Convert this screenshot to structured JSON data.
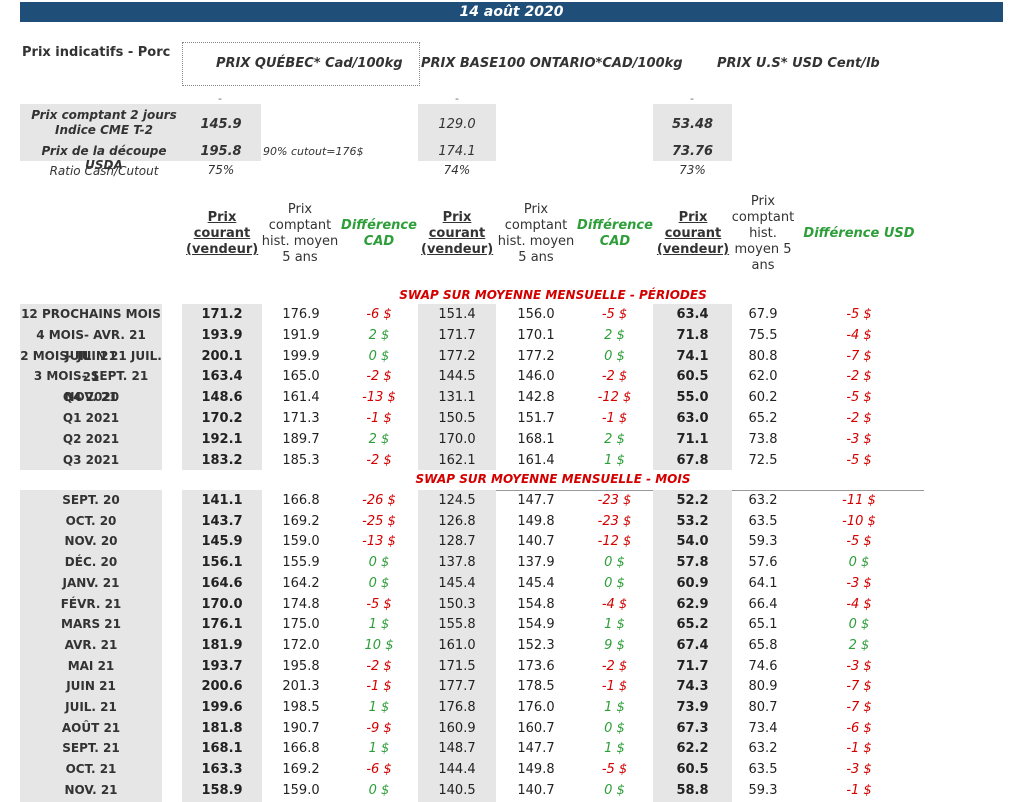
{
  "date": "14 août 2020",
  "header": {
    "title": "Prix indicatifs - Porc",
    "col_qc": "PRIX QUÉBEC* Cad/100kg",
    "col_on": "PRIX BASE100 ONTARIO*CAD/100kg",
    "col_us": "PRIX U.S* USD Cent/lb",
    "dash": "-"
  },
  "summary": {
    "cash_label": "Prix comptant 2 jours Indice CME T-2",
    "cutout_label": "Prix de la découpe USDA",
    "ratio_label": "Ratio Cash/Cutout",
    "cutout_note": "90% cutout=176$",
    "qc": {
      "cash": "145.9",
      "cutout": "195.8",
      "ratio": "75%"
    },
    "on": {
      "cash": "129.0",
      "cutout": "174.1",
      "ratio": "74%"
    },
    "us": {
      "cash": "53.48",
      "cutout": "73.76",
      "ratio": "73%"
    }
  },
  "subheaders": {
    "current": "Prix courant (vendeur)",
    "hist": "Prix comptant hist. moyen 5 ans",
    "hist_us": "Prix comptant hist. moyen 5 ans",
    "diff_cad": "Différence CAD",
    "diff_usd": "Différence USD"
  },
  "sections": {
    "periods": "SWAP SUR MOYENNE MENSUELLE - PÉRIODES",
    "months": "SWAP SUR MOYENNE MENSUELLE - MOIS"
  },
  "periods": [
    {
      "label": "12 PROCHAINS MOIS",
      "qc": "171.2",
      "qch": "176.9",
      "qcd": "-6 $",
      "on": "151.4",
      "onh": "156.0",
      "ond": "-5 $",
      "us": "63.4",
      "ush": "67.9",
      "usd": "-5 $"
    },
    {
      "label": "4 MOIS- AVR. 21 JUIL. 21",
      "qc": "193.9",
      "qch": "191.9",
      "qcd": "2 $",
      "on": "171.7",
      "onh": "170.1",
      "ond": "2 $",
      "us": "71.8",
      "ush": "75.5",
      "usd": "-4 $"
    },
    {
      "label": "2 MOIS- JUIN 21 JUIL. 21",
      "qc": "200.1",
      "qch": "199.9",
      "qcd": "0 $",
      "on": "177.2",
      "onh": "177.2",
      "ond": "0 $",
      "us": "74.1",
      "ush": "80.8",
      "usd": "-7 $"
    },
    {
      "label": "3 MOIS- SEPT. 21 NOV. 21",
      "qc": "163.4",
      "qch": "165.0",
      "qcd": "-2 $",
      "on": "144.5",
      "onh": "146.0",
      "ond": "-2 $",
      "us": "60.5",
      "ush": "62.0",
      "usd": "-2 $"
    },
    {
      "label": "Q4 2020",
      "qc": "148.6",
      "qch": "161.4",
      "qcd": "-13 $",
      "on": "131.1",
      "onh": "142.8",
      "ond": "-12 $",
      "us": "55.0",
      "ush": "60.2",
      "usd": "-5 $"
    },
    {
      "label": "Q1 2021",
      "qc": "170.2",
      "qch": "171.3",
      "qcd": "-1 $",
      "on": "150.5",
      "onh": "151.7",
      "ond": "-1 $",
      "us": "63.0",
      "ush": "65.2",
      "usd": "-2 $"
    },
    {
      "label": "Q2 2021",
      "qc": "192.1",
      "qch": "189.7",
      "qcd": "2 $",
      "on": "170.0",
      "onh": "168.1",
      "ond": "2 $",
      "us": "71.1",
      "ush": "73.8",
      "usd": "-3 $"
    },
    {
      "label": "Q3 2021",
      "qc": "183.2",
      "qch": "185.3",
      "qcd": "-2 $",
      "on": "162.1",
      "onh": "161.4",
      "ond": "1 $",
      "us": "67.8",
      "ush": "72.5",
      "usd": "-5 $"
    }
  ],
  "months": [
    {
      "label": "SEPT. 20",
      "qc": "141.1",
      "qch": "166.8",
      "qcd": "-26 $",
      "on": "124.5",
      "onh": "147.7",
      "ond": "-23 $",
      "us": "52.2",
      "ush": "63.2",
      "usd": "-11 $"
    },
    {
      "label": "OCT. 20",
      "qc": "143.7",
      "qch": "169.2",
      "qcd": "-25 $",
      "on": "126.8",
      "onh": "149.8",
      "ond": "-23 $",
      "us": "53.2",
      "ush": "63.5",
      "usd": "-10 $"
    },
    {
      "label": "NOV. 20",
      "qc": "145.9",
      "qch": "159.0",
      "qcd": "-13 $",
      "on": "128.7",
      "onh": "140.7",
      "ond": "-12 $",
      "us": "54.0",
      "ush": "59.3",
      "usd": "-5 $"
    },
    {
      "label": "DÉC. 20",
      "qc": "156.1",
      "qch": "155.9",
      "qcd": "0 $",
      "on": "137.8",
      "onh": "137.9",
      "ond": "0 $",
      "us": "57.8",
      "ush": "57.6",
      "usd": "0 $"
    },
    {
      "label": "JANV. 21",
      "qc": "164.6",
      "qch": "164.2",
      "qcd": "0 $",
      "on": "145.4",
      "onh": "145.4",
      "ond": "0 $",
      "us": "60.9",
      "ush": "64.1",
      "usd": "-3 $"
    },
    {
      "label": "FÉVR. 21",
      "qc": "170.0",
      "qch": "174.8",
      "qcd": "-5 $",
      "on": "150.3",
      "onh": "154.8",
      "ond": "-4 $",
      "us": "62.9",
      "ush": "66.4",
      "usd": "-4 $"
    },
    {
      "label": "MARS 21",
      "qc": "176.1",
      "qch": "175.0",
      "qcd": "1 $",
      "on": "155.8",
      "onh": "154.9",
      "ond": "1 $",
      "us": "65.2",
      "ush": "65.1",
      "usd": "0 $"
    },
    {
      "label": "AVR. 21",
      "qc": "181.9",
      "qch": "172.0",
      "qcd": "10 $",
      "on": "161.0",
      "onh": "152.3",
      "ond": "9 $",
      "us": "67.4",
      "ush": "65.8",
      "usd": "2 $"
    },
    {
      "label": "MAI 21",
      "qc": "193.7",
      "qch": "195.8",
      "qcd": "-2 $",
      "on": "171.5",
      "onh": "173.6",
      "ond": "-2 $",
      "us": "71.7",
      "ush": "74.6",
      "usd": "-3 $"
    },
    {
      "label": "JUIN 21",
      "qc": "200.6",
      "qch": "201.3",
      "qcd": "-1 $",
      "on": "177.7",
      "onh": "178.5",
      "ond": "-1 $",
      "us": "74.3",
      "ush": "80.9",
      "usd": "-7 $"
    },
    {
      "label": "JUIL. 21",
      "qc": "199.6",
      "qch": "198.5",
      "qcd": "1 $",
      "on": "176.8",
      "onh": "176.0",
      "ond": "1 $",
      "us": "73.9",
      "ush": "80.7",
      "usd": "-7 $"
    },
    {
      "label": "AOÛT 21",
      "qc": "181.8",
      "qch": "190.7",
      "qcd": "-9 $",
      "on": "160.9",
      "onh": "160.7",
      "ond": "0 $",
      "us": "67.3",
      "ush": "73.4",
      "usd": "-6 $"
    },
    {
      "label": "SEPT. 21",
      "qc": "168.1",
      "qch": "166.8",
      "qcd": "1 $",
      "on": "148.7",
      "onh": "147.7",
      "ond": "1 $",
      "us": "62.2",
      "ush": "63.2",
      "usd": "-1 $"
    },
    {
      "label": "OCT. 21",
      "qc": "163.3",
      "qch": "169.2",
      "qcd": "-6 $",
      "on": "144.4",
      "onh": "149.8",
      "ond": "-5 $",
      "us": "60.5",
      "ush": "63.5",
      "usd": "-3 $"
    },
    {
      "label": "NOV. 21",
      "qc": "158.9",
      "qch": "159.0",
      "qcd": "0 $",
      "on": "140.5",
      "onh": "140.7",
      "ond": "0 $",
      "us": "58.8",
      "ush": "59.3",
      "usd": "-1 $"
    }
  ],
  "colors": {
    "banner": "#1f4e79",
    "negative": "#d40000",
    "positive": "#2e9e3a",
    "section": "#d40000",
    "gray": "#e6e6e6"
  }
}
